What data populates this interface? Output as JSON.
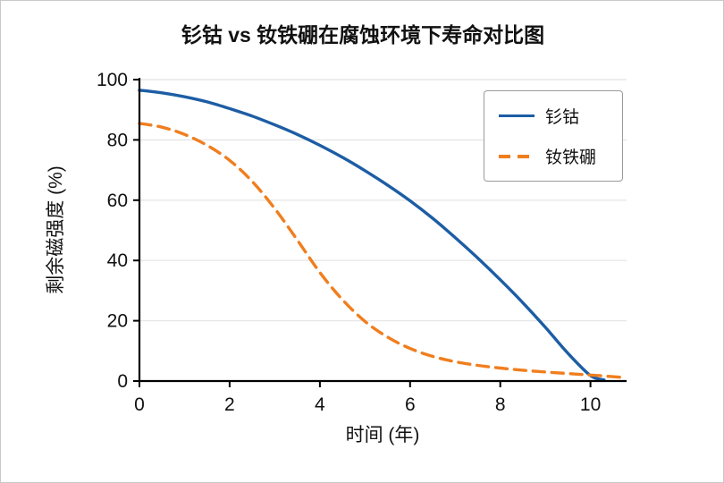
{
  "chart_data": {
    "type": "line",
    "title": "钐钴 vs 钕铁硼在腐蚀环境下寿命对比图",
    "xlabel": "时间 (年)",
    "ylabel": "剩余磁强度 (%)",
    "xlim": [
      0,
      10.8
    ],
    "ylim": [
      0,
      100
    ],
    "xticks": [
      0,
      2,
      4,
      6,
      8,
      10
    ],
    "yticks": [
      0,
      20,
      40,
      60,
      80,
      100
    ],
    "grid": "horizontal-light",
    "grid_color": "#e7e7e7",
    "axis_color": "#000000",
    "legend_position": "upper-right",
    "series": [
      {
        "name": "钐钴",
        "color": "#1d5da4",
        "style": "solid",
        "x": [
          0,
          0.5,
          1,
          1.5,
          2,
          2.5,
          3,
          3.5,
          4,
          4.5,
          5,
          5.5,
          6,
          6.5,
          7,
          7.5,
          8,
          8.5,
          9,
          9.5,
          10,
          10.3
        ],
        "y": [
          96.5,
          95.6,
          94.3,
          92.6,
          90.4,
          87.9,
          85.0,
          81.8,
          78.2,
          74.2,
          69.8,
          65.0,
          59.8,
          54.0,
          47.6,
          40.8,
          33.6,
          26.0,
          17.8,
          9.2,
          1.8,
          0.4
        ]
      },
      {
        "name": "钕铁硼",
        "color": "#f07e1e",
        "style": "dashed",
        "x": [
          0,
          0.5,
          1,
          1.5,
          2,
          2.5,
          3,
          3.5,
          4,
          4.5,
          5,
          5.5,
          6,
          6.5,
          7,
          7.5,
          8,
          8.5,
          9,
          9.5,
          10,
          10.75
        ],
        "y": [
          85.5,
          84.2,
          81.8,
          78.2,
          73.2,
          66.2,
          57.2,
          46.8,
          36.0,
          27.0,
          19.8,
          14.6,
          10.8,
          8.2,
          6.4,
          5.2,
          4.3,
          3.6,
          3.0,
          2.5,
          2.0,
          1.2
        ]
      }
    ]
  }
}
